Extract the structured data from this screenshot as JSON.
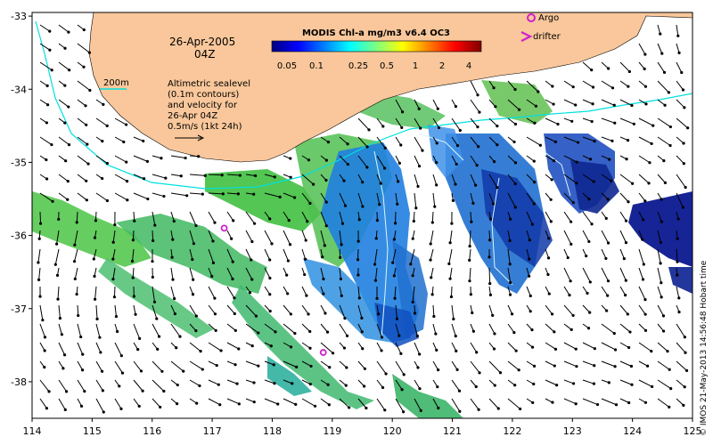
{
  "header": {
    "date": "26-Apr-2005",
    "time": "04Z",
    "product_title": "MODIS Chl-a mg/m3 v6.4 OC3"
  },
  "colorbar": {
    "ticks": [
      "0.05",
      "0.1",
      "0.25",
      "0.5",
      "1",
      "2",
      "4"
    ],
    "stops": [
      "#00007f",
      "#0000ff",
      "#007fff",
      "#00ffff",
      "#7fff7f",
      "#ffff00",
      "#ff7f00",
      "#ff0000",
      "#7f0000"
    ]
  },
  "legend": {
    "argo_label": "Argo",
    "drifter_label": "drifter",
    "isobath_label": "200m",
    "altimetry_lines": [
      "Altimetric sealevel",
      "(0.1m contours)",
      "and velocity for",
      "26-Apr 04Z",
      "0.5m/s (1kt 24h)"
    ]
  },
  "axes": {
    "x_ticks": [
      "114",
      "115",
      "116",
      "117",
      "118",
      "119",
      "120",
      "121",
      "122",
      "123",
      "124",
      "125"
    ],
    "y_ticks": [
      "-33",
      "-34",
      "-35",
      "-36",
      "-37",
      "-38"
    ]
  },
  "credit": "© IMOS 21-May-2013 14:56:48 Hobart time",
  "colors": {
    "land": "#f9c79b",
    "isobath": "#00e0e0",
    "argo": "#d020d0",
    "arrow": "#000000"
  },
  "argo_floats": [
    {
      "lon": 117.2,
      "lat": -35.9
    },
    {
      "lon": 118.85,
      "lat": -37.6
    }
  ]
}
